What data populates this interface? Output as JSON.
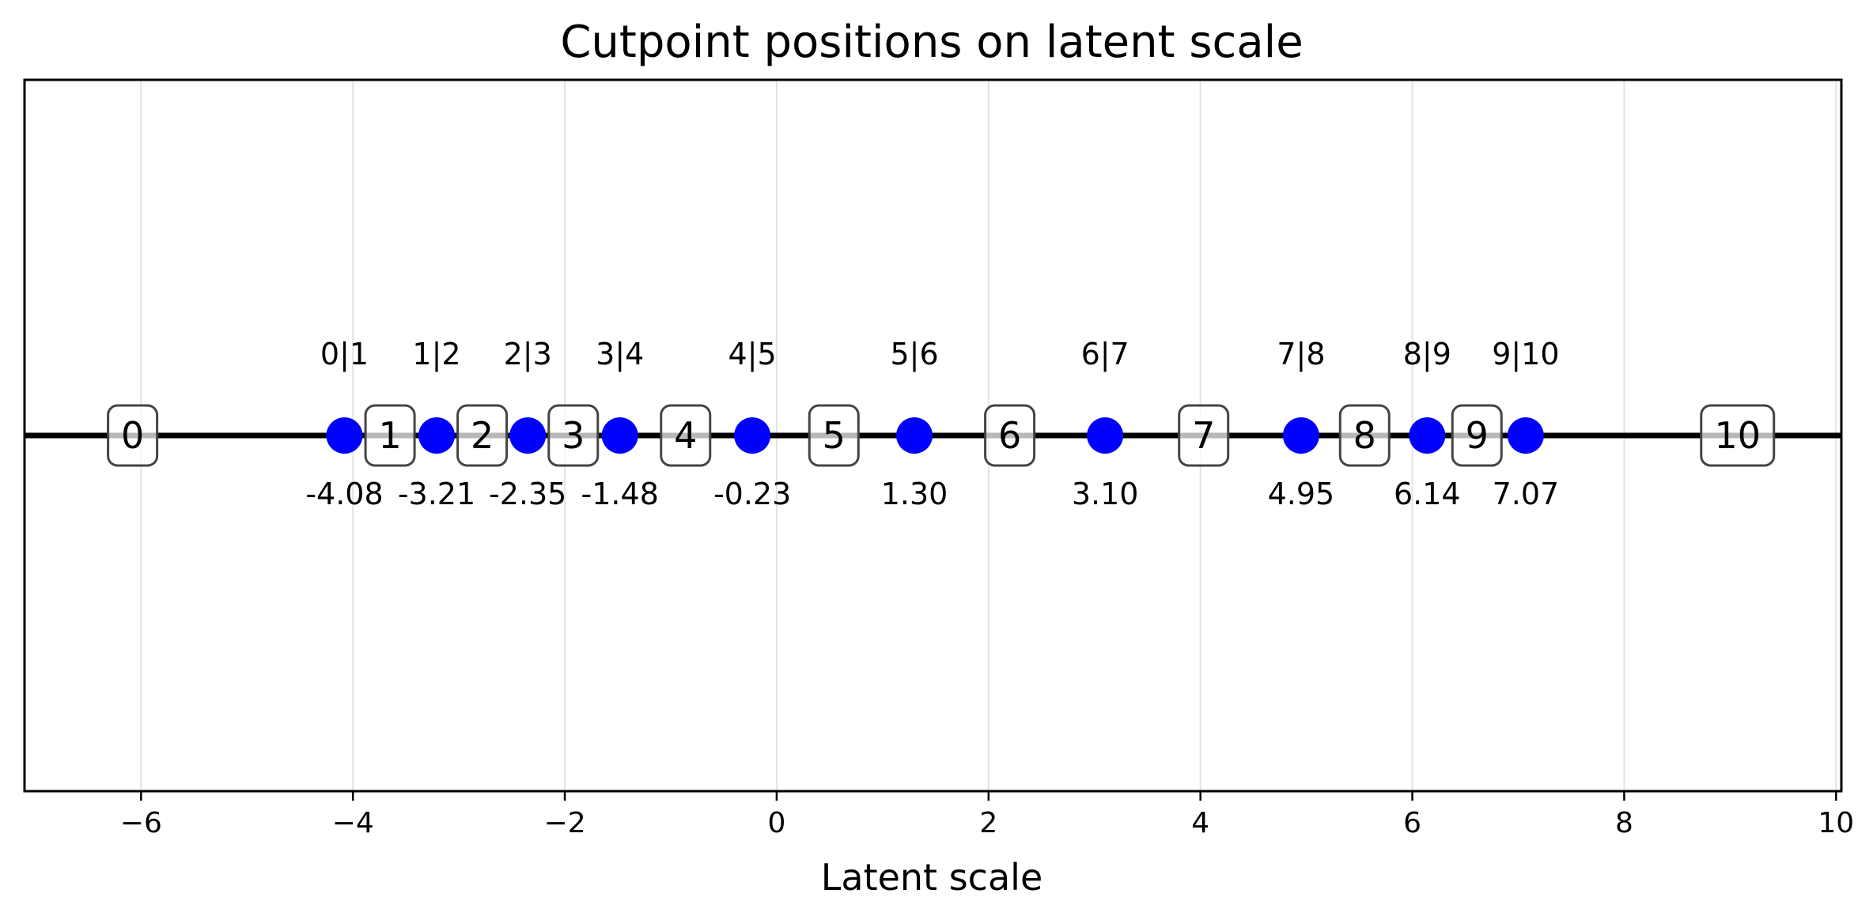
{
  "chart_data": {
    "type": "scatter",
    "title": "Cutpoint positions on latent scale",
    "xlabel": "Latent scale",
    "ylabel": "",
    "xlim": [
      -7.1,
      10.05
    ],
    "xticks": [
      -6,
      -4,
      -2,
      0,
      2,
      4,
      6,
      8,
      10
    ],
    "xtick_labels": [
      "−6",
      "−4",
      "−2",
      "0",
      "2",
      "4",
      "6",
      "8",
      "10"
    ],
    "grid": "vertical",
    "marker_color": "#0000ff",
    "cutpoints": [
      {
        "name": "0|1",
        "x": -4.08,
        "label": "-4.08"
      },
      {
        "name": "1|2",
        "x": -3.21,
        "label": "-3.21"
      },
      {
        "name": "2|3",
        "x": -2.35,
        "label": "-2.35"
      },
      {
        "name": "3|4",
        "x": -1.48,
        "label": "-1.48"
      },
      {
        "name": "4|5",
        "x": -0.23,
        "label": "-0.23"
      },
      {
        "name": "5|6",
        "x": 1.3,
        "label": "1.30"
      },
      {
        "name": "6|7",
        "x": 3.1,
        "label": "3.10"
      },
      {
        "name": "7|8",
        "x": 4.95,
        "label": "4.95"
      },
      {
        "name": "8|9",
        "x": 6.14,
        "label": "6.14"
      },
      {
        "name": "9|10",
        "x": 7.07,
        "label": "7.07"
      }
    ],
    "categories": [
      {
        "label": "0",
        "x": -6.08
      },
      {
        "label": "1",
        "x": -3.65
      },
      {
        "label": "2",
        "x": -2.78
      },
      {
        "label": "3",
        "x": -1.92
      },
      {
        "label": "4",
        "x": -0.86
      },
      {
        "label": "5",
        "x": 0.54
      },
      {
        "label": "6",
        "x": 2.2
      },
      {
        "label": "7",
        "x": 4.03
      },
      {
        "label": "8",
        "x": 5.55
      },
      {
        "label": "9",
        "x": 6.61
      },
      {
        "label": "10",
        "x": 9.07
      }
    ]
  }
}
